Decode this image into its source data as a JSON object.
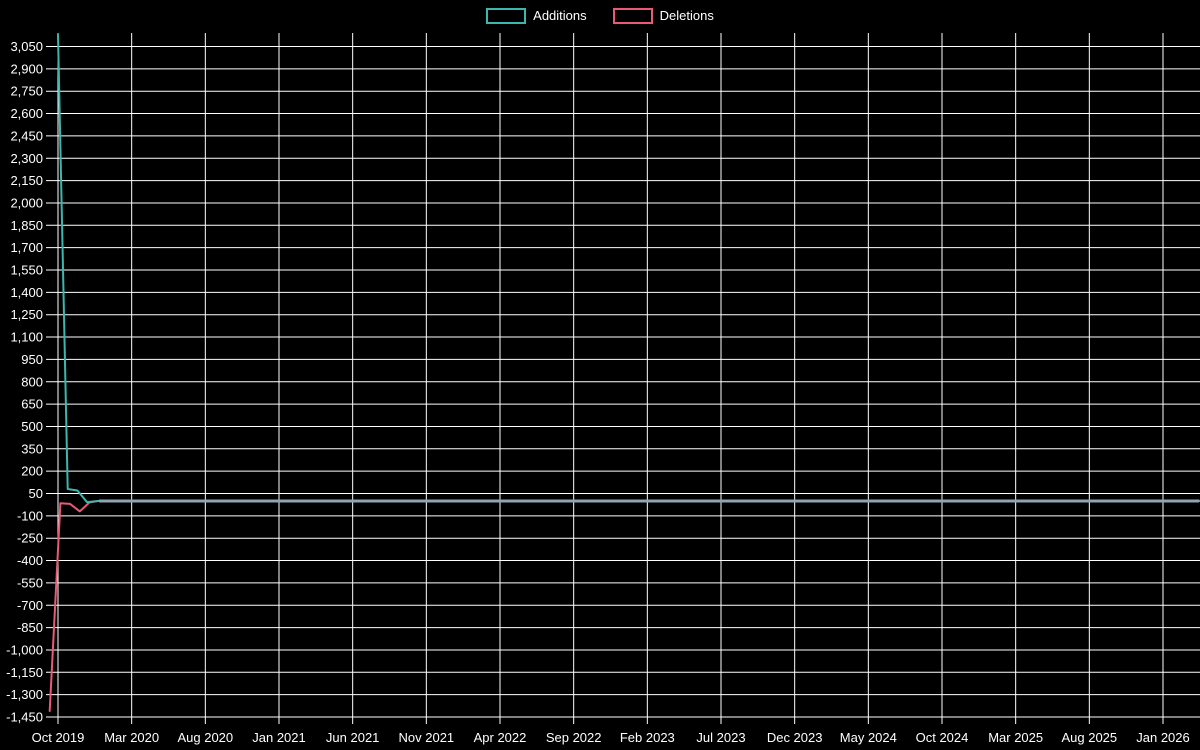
{
  "page": {
    "background": "#000000"
  },
  "legend": {
    "items": [
      {
        "label": "Additions",
        "color": "#3ab7ae"
      },
      {
        "label": "Deletions",
        "color": "#ea5a73"
      }
    ]
  },
  "chart_data": {
    "type": "line",
    "title": "",
    "xlabel": "",
    "ylabel": "",
    "legend_position": "top-center",
    "grid": true,
    "background": "#000000",
    "grid_color": "#ffffff",
    "text_color": "#ffffff",
    "x_axis": {
      "start": "Oct 2019",
      "end": "Jan 2026",
      "interval_months": 5,
      "tick_labels": [
        "Oct 2019",
        "Mar 2020",
        "Aug 2020",
        "Jan 2021",
        "Jun 2021",
        "Nov 2021",
        "Apr 2022",
        "Sep 2022",
        "Feb 2023",
        "Jul 2023",
        "Dec 2023",
        "May 2024",
        "Oct 2024",
        "Mar 2025",
        "Aug 2025",
        "Jan 2026"
      ]
    },
    "y_axis": {
      "min": -1450,
      "max": 3050,
      "step": 150,
      "tick_labels": [
        "3,050",
        "2,900",
        "2,750",
        "2,600",
        "2,450",
        "2,300",
        "2,150",
        "2,000",
        "1,850",
        "1,700",
        "1,550",
        "1,400",
        "1,250",
        "1,100",
        "950",
        "800",
        "650",
        "500",
        "350",
        "200",
        "50",
        "-100",
        "-250",
        "-400",
        "-550",
        "-700",
        "-850",
        "-1,000",
        "-1,150",
        "-1,300",
        "-1,450"
      ]
    },
    "series": [
      {
        "name": "Additions",
        "color": "#3ab7ae",
        "points": [
          [
            "2019-10-01",
            3130
          ],
          [
            "2019-10-05",
            80
          ],
          [
            "2019-10-09",
            70
          ],
          [
            "2019-10-13",
            -8
          ],
          [
            "2019-10-18",
            0
          ],
          [
            "2021-04-28",
            0
          ],
          [
            "2021-05-04",
            15
          ],
          [
            "2021-05-11",
            15
          ],
          [
            "2021-05-16",
            0
          ],
          [
            "2026-03-10",
            0
          ]
        ]
      },
      {
        "name": "Deletions",
        "color": "#ea5a73",
        "points": [
          [
            "2019-09-28",
            -1410
          ],
          [
            "2019-10-02",
            -15
          ],
          [
            "2019-10-06",
            -20
          ],
          [
            "2019-10-10",
            -70
          ],
          [
            "2019-10-14",
            -10
          ],
          [
            "2019-10-18",
            0
          ],
          [
            "2021-05-06",
            0
          ],
          [
            "2021-05-11",
            -25
          ],
          [
            "2021-05-16",
            0
          ],
          [
            "2024-01-10",
            0
          ],
          [
            "2024-01-14",
            -18
          ],
          [
            "2024-01-18",
            0
          ],
          [
            "2026-03-10",
            0
          ]
        ]
      }
    ],
    "overlap_line": {
      "note": "both series coincide at ~0 from late Oct 2019 onward; rendered as blended gray line",
      "value": 0,
      "from": "2019-10-18",
      "to": "2026-03-10",
      "color": "#8fa6b2"
    }
  }
}
